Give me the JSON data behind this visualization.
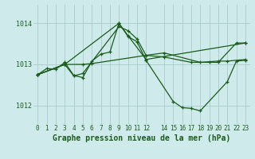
{
  "title": "Graphe pression niveau de la mer (hPa)",
  "background_color": "#ceeaea",
  "grid_color": "#aed0d0",
  "line_color": "#1a5c1a",
  "ylim": [
    1011.55,
    1014.45
  ],
  "yticks": [
    1012,
    1013,
    1014
  ],
  "xlim": [
    -0.5,
    23.5
  ],
  "xticks": [
    0,
    1,
    2,
    3,
    4,
    5,
    6,
    7,
    8,
    9,
    10,
    11,
    12,
    14,
    15,
    16,
    17,
    18,
    19,
    20,
    21,
    22,
    23
  ],
  "series": [
    {
      "x": [
        0,
        1,
        2,
        3,
        4,
        5,
        6,
        7,
        8,
        9,
        10,
        11,
        12,
        15,
        16,
        17,
        18,
        21,
        22,
        23
      ],
      "y": [
        1012.75,
        1012.9,
        1012.88,
        1013.05,
        1012.73,
        1012.68,
        1013.08,
        1013.25,
        1013.3,
        1014.0,
        1013.68,
        1013.55,
        1013.1,
        1012.1,
        1011.95,
        1011.93,
        1011.87,
        1012.58,
        1013.08,
        1013.1
      ]
    },
    {
      "x": [
        0,
        3,
        4,
        5,
        9,
        10,
        11,
        12,
        14,
        17,
        19,
        20,
        22,
        23
      ],
      "y": [
        1012.75,
        1013.0,
        1012.72,
        1012.78,
        1013.92,
        1013.82,
        1013.62,
        1013.22,
        1013.18,
        1013.05,
        1013.05,
        1013.05,
        1013.52,
        1013.52
      ]
    },
    {
      "x": [
        0,
        3,
        5,
        6,
        12,
        14,
        18,
        20,
        21,
        23
      ],
      "y": [
        1012.75,
        1013.0,
        1013.0,
        1013.02,
        1013.22,
        1013.28,
        1013.05,
        1013.08,
        1013.08,
        1013.12
      ]
    },
    {
      "x": [
        0,
        3,
        9,
        10,
        12,
        23
      ],
      "y": [
        1012.75,
        1013.0,
        1014.0,
        1013.7,
        1013.12,
        1013.52
      ]
    }
  ],
  "title_fontsize": 7,
  "tick_fontsize": 6,
  "tick_color": "#1a5c1a",
  "title_color": "#1a5c1a"
}
